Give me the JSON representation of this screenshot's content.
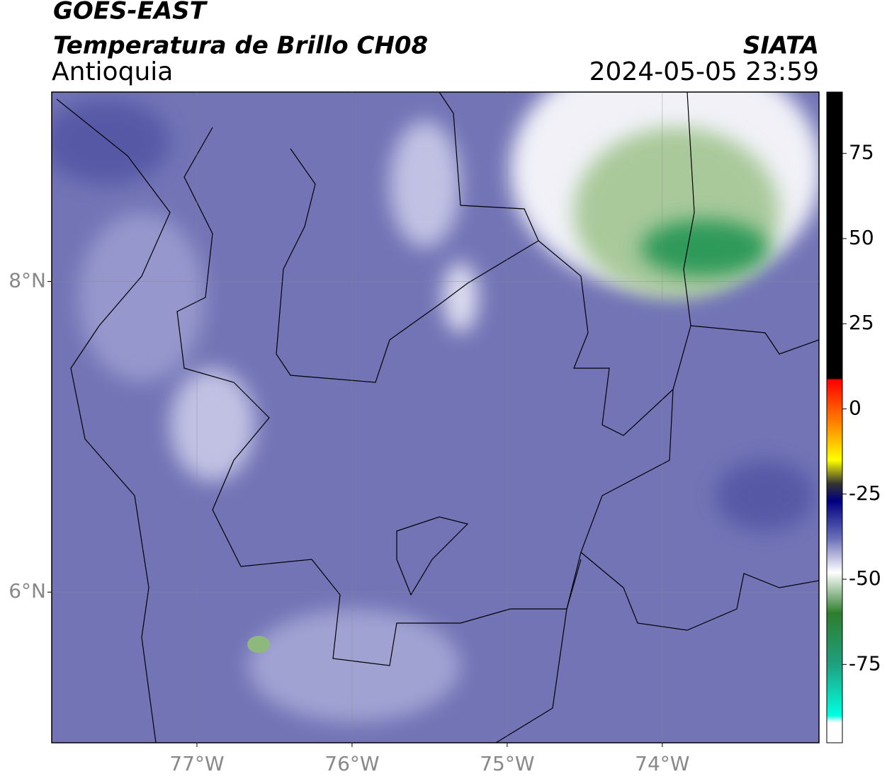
{
  "header": {
    "satellite": "GOES-EAST",
    "product": "Temperatura de Brillo CH08",
    "region": "Antioquia",
    "source": "SIATA",
    "datetime": "2024-05-05 23:59"
  },
  "map": {
    "xlim": [
      -77.936,
      -72.99
    ],
    "ylim": [
      5.03,
      9.22
    ],
    "xticks": [
      {
        "value": -77,
        "label": "77°W"
      },
      {
        "value": -76,
        "label": "76°W"
      },
      {
        "value": -75,
        "label": "75°W"
      },
      {
        "value": -74,
        "label": "74°W"
      }
    ],
    "yticks": [
      {
        "value": 8,
        "label": "8°N"
      },
      {
        "value": 6,
        "label": "6°N"
      }
    ],
    "grid": true
  },
  "colorbar": {
    "range": [
      -98,
      93
    ],
    "ticks": [
      75,
      50,
      25,
      0,
      -25,
      -50,
      -75
    ],
    "colormap": [
      {
        "value": 93,
        "color": "#000000"
      },
      {
        "value": 9,
        "color": "#000000"
      },
      {
        "value": 8.5,
        "color": "#ff0000"
      },
      {
        "value": -5,
        "color": "#ff8c00"
      },
      {
        "value": -15,
        "color": "#ffff00"
      },
      {
        "value": -22,
        "color": "#333333"
      },
      {
        "value": -27,
        "color": "#000080"
      },
      {
        "value": -38,
        "color": "#6a6fb8"
      },
      {
        "value": -48,
        "color": "#ffffff"
      },
      {
        "value": -60,
        "color": "#2e7d2e"
      },
      {
        "value": -75,
        "color": "#1fa080"
      },
      {
        "value": -90,
        "color": "#00ffe0"
      },
      {
        "value": -92,
        "color": "#ffffff"
      },
      {
        "value": -98,
        "color": "#ffffff"
      }
    ]
  }
}
